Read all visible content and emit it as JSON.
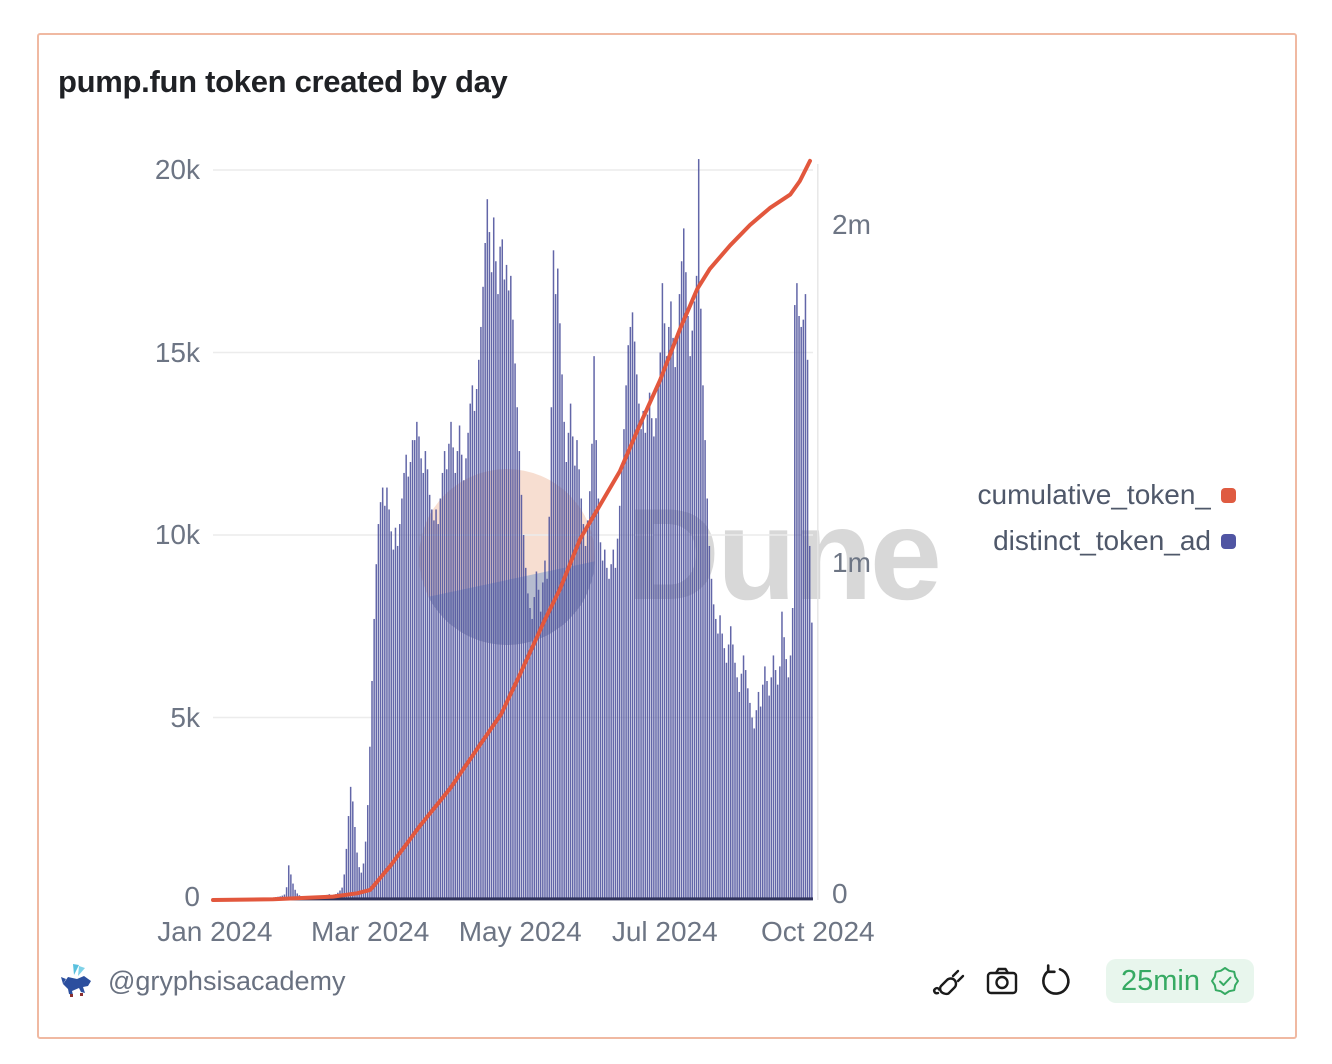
{
  "card": {
    "title": "pump.fun token created by day",
    "border_color": "#f0b9a2"
  },
  "chart_data": {
    "type": "bar",
    "title": "pump.fun token created by day",
    "x_cadence": "daily",
    "x_start": "2024-01-01",
    "grid": true,
    "legend_position": "right",
    "x_ticks": [
      {
        "label": "Jan 2024",
        "pos": 0.003,
        "grid": false
      },
      {
        "label": "Mar 2024",
        "pos": 0.262,
        "grid": false
      },
      {
        "label": "May 2024",
        "pos": 0.512,
        "grid": false
      },
      {
        "label": "Jul 2024",
        "pos": 0.753,
        "grid": false
      },
      {
        "label": "Oct 2024",
        "pos": 1.008,
        "grid": true
      }
    ],
    "left_axis": {
      "ticks": [
        {
          "label": "0",
          "value": 0
        },
        {
          "label": "5k",
          "value": 5000
        },
        {
          "label": "10k",
          "value": 10000
        },
        {
          "label": "15k",
          "value": 15000
        },
        {
          "label": "20k",
          "value": 20000
        }
      ],
      "max": 20000
    },
    "right_axis": {
      "ticks": [
        {
          "label": "0",
          "value": 0
        },
        {
          "label": "1m",
          "value": 1000000
        },
        {
          "label": "2m",
          "value": 2000000
        }
      ],
      "max": 2160000
    },
    "series": [
      {
        "name": "distinct_token_ad",
        "type": "bar",
        "axis": "left",
        "color": "#51559f",
        "values": [
          20,
          25,
          30,
          30,
          35,
          30,
          25,
          30,
          35,
          40,
          35,
          30,
          30,
          35,
          40,
          45,
          40,
          35,
          30,
          35,
          40,
          45,
          50,
          45,
          40,
          45,
          50,
          55,
          60,
          80,
          90,
          100,
          120,
          150,
          350,
          950,
          700,
          450,
          280,
          180,
          130,
          100,
          90,
          80,
          90,
          100,
          110,
          100,
          90,
          100,
          110,
          120,
          130,
          140,
          160,
          120,
          140,
          160,
          200,
          260,
          340,
          700,
          1400,
          2300,
          3100,
          2700,
          2000,
          1300,
          900,
          750,
          1000,
          1600,
          2600,
          4200,
          6000,
          7700,
          9200,
          10300,
          10900,
          11300,
          10800,
          11300,
          10700,
          10100,
          9600,
          10200,
          9700,
          10300,
          11000,
          11700,
          12200,
          11600,
          12000,
          12600,
          12600,
          13100,
          12700,
          12100,
          11700,
          12300,
          11800,
          11100,
          10700,
          10400,
          10700,
          10300,
          11000,
          11700,
          12300,
          11800,
          12500,
          13100,
          12400,
          11700,
          12300,
          13000,
          12200,
          11500,
          12100,
          12800,
          13600,
          14100,
          13400,
          14000,
          14800,
          15700,
          16800,
          18000,
          19200,
          18300,
          17200,
          18700,
          17500,
          16600,
          17900,
          18100,
          17000,
          17400,
          16700,
          17100,
          15900,
          14700,
          13500,
          12300,
          11100,
          10000,
          9100,
          8400,
          8000,
          7700,
          8300,
          9000,
          8500,
          7900,
          8700,
          9300,
          8800,
          10500,
          13500,
          17800,
          16600,
          17300,
          15800,
          14400,
          13100,
          12000,
          12800,
          13600,
          12700,
          11900,
          12600,
          11800,
          11000,
          10300,
          9700,
          10400,
          11200,
          12500,
          14900,
          12600,
          11000,
          9800,
          9300,
          9600,
          9100,
          8800,
          9200,
          9600,
          9100,
          9900,
          10800,
          11800,
          12900,
          14100,
          15200,
          15700,
          16100,
          15300,
          14400,
          13600,
          12900,
          13400,
          12800,
          13300,
          13900,
          13200,
          12700,
          13200,
          14100,
          15000,
          16900,
          15800,
          14900,
          15700,
          16400,
          15400,
          14600,
          15500,
          16600,
          17500,
          18400,
          17200,
          16000,
          14900,
          15600,
          16400,
          17100,
          20300,
          16200,
          14100,
          12600,
          11000,
          9700,
          8800,
          8100,
          7700,
          7300,
          7800,
          7300,
          6900,
          6500,
          7000,
          7500,
          7000,
          6500,
          6100,
          5700,
          6200,
          6700,
          6300,
          5800,
          5400,
          5000,
          4700,
          5200,
          5700,
          5300,
          5900,
          6400,
          6000,
          5600,
          6100,
          6700,
          6300,
          5900,
          6400,
          7900,
          7200,
          6600,
          6100,
          6700,
          8000,
          16300,
          16900,
          16000,
          15700,
          15900,
          16600,
          14800,
          9700,
          7600
        ]
      },
      {
        "name": "cumulative_token_",
        "type": "line",
        "axis": "right",
        "color": "#e2573d",
        "final_value": 2190000,
        "points": [
          {
            "x": 0.0,
            "y": 0
          },
          {
            "x": 0.1,
            "y": 2000
          },
          {
            "x": 0.2,
            "y": 10000
          },
          {
            "x": 0.24,
            "y": 20000
          },
          {
            "x": 0.262,
            "y": 30000
          },
          {
            "x": 0.295,
            "y": 100000
          },
          {
            "x": 0.345,
            "y": 220000
          },
          {
            "x": 0.395,
            "y": 330000
          },
          {
            "x": 0.445,
            "y": 460000
          },
          {
            "x": 0.48,
            "y": 550000
          },
          {
            "x": 0.512,
            "y": 670000
          },
          {
            "x": 0.553,
            "y": 830000
          },
          {
            "x": 0.578,
            "y": 920000
          },
          {
            "x": 0.612,
            "y": 1070000
          },
          {
            "x": 0.645,
            "y": 1170000
          },
          {
            "x": 0.678,
            "y": 1270000
          },
          {
            "x": 0.712,
            "y": 1410000
          },
          {
            "x": 0.745,
            "y": 1540000
          },
          {
            "x": 0.778,
            "y": 1690000
          },
          {
            "x": 0.807,
            "y": 1810000
          },
          {
            "x": 0.828,
            "y": 1870000
          },
          {
            "x": 0.862,
            "y": 1940000
          },
          {
            "x": 0.895,
            "y": 2000000
          },
          {
            "x": 0.928,
            "y": 2050000
          },
          {
            "x": 0.962,
            "y": 2090000
          },
          {
            "x": 0.978,
            "y": 2130000
          },
          {
            "x": 0.995,
            "y": 2190000
          }
        ]
      }
    ]
  },
  "legend": {
    "items": [
      {
        "label": "cumulative_token_",
        "color": "#df5b41"
      },
      {
        "label": "distinct_token_ad",
        "color": "#5055a3"
      }
    ]
  },
  "watermark": {
    "text": "Dune",
    "text_color": "#d8d8d8",
    "circle_top_color": "#f7ded1",
    "circle_bottom_color": "#b6bccf"
  },
  "footer": {
    "handle": "@gryphsisacademy",
    "refresh_badge": "25min",
    "badge_text_color": "#36aa63",
    "badge_bg_color": "#e8f6ed"
  }
}
